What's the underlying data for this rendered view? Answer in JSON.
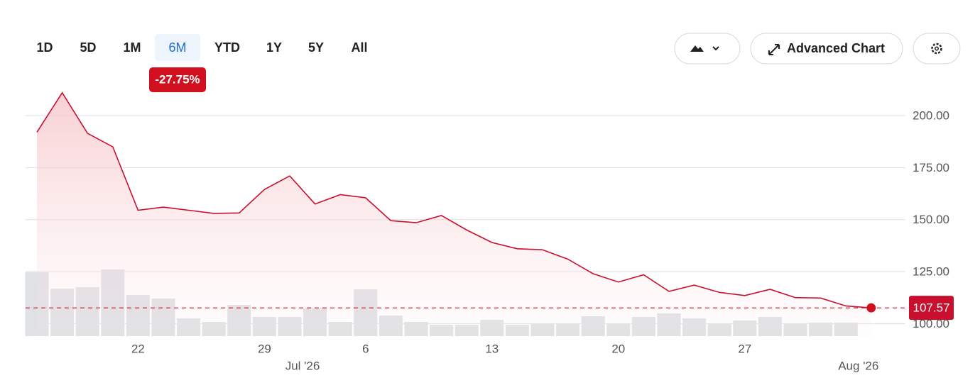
{
  "ui": {
    "range_buttons": [
      "1D",
      "5D",
      "1M",
      "6M",
      "YTD",
      "1Y",
      "5Y",
      "All"
    ],
    "selected_range_index": 3,
    "change_label": "-27.75%",
    "advanced_button": "Advanced Chart"
  },
  "chart_data": {
    "type": "line",
    "categories": [
      null,
      null,
      null,
      null,
      "22",
      null,
      null,
      null,
      null,
      "29",
      null,
      null,
      null,
      "6",
      null,
      null,
      null,
      null,
      "13",
      null,
      null,
      null,
      null,
      "20",
      null,
      null,
      null,
      null,
      "27",
      null,
      null,
      null,
      null,
      null
    ],
    "month_categories": [
      null,
      null,
      null,
      null,
      null,
      null,
      null,
      null,
      null,
      null,
      "Jul '26",
      null,
      null,
      null,
      null,
      null,
      null,
      null,
      null,
      null,
      null,
      null,
      null,
      null,
      null,
      null,
      null,
      null,
      null,
      null,
      null,
      null,
      null,
      "Aug '26"
    ],
    "series": [
      {
        "color": "#c8102e",
        "values": [
          192,
          211,
          191.5,
          185,
          154.5,
          156,
          154.5,
          153,
          153.2,
          164.5,
          171,
          157.5,
          162,
          160.5,
          149.5,
          148.5,
          152,
          145,
          139,
          136,
          135.5,
          131,
          124,
          120,
          123.5,
          115.5,
          118.5,
          115,
          113.5,
          116.5,
          112.5,
          112.3,
          108.5,
          107.57
        ]
      },
      {
        "color": "#dfe1e5",
        "values": [
          90,
          67,
          69,
          94,
          58,
          53,
          25,
          20,
          44,
          27,
          27,
          39,
          20,
          66,
          29,
          20,
          16,
          16,
          23,
          16,
          18,
          18,
          28,
          18,
          27,
          32,
          25,
          18,
          22,
          27,
          17,
          19,
          19,
          null
        ]
      }
    ],
    "ylim": [
      94,
      215
    ],
    "yticks": [
      {
        "value": 100,
        "label": "100.00"
      },
      {
        "value": 125,
        "label": "125.00"
      },
      {
        "value": 150,
        "label": "150.00"
      },
      {
        "value": 175,
        "label": "175.00"
      },
      {
        "value": 200,
        "label": "200.00"
      }
    ],
    "grid": true
  }
}
